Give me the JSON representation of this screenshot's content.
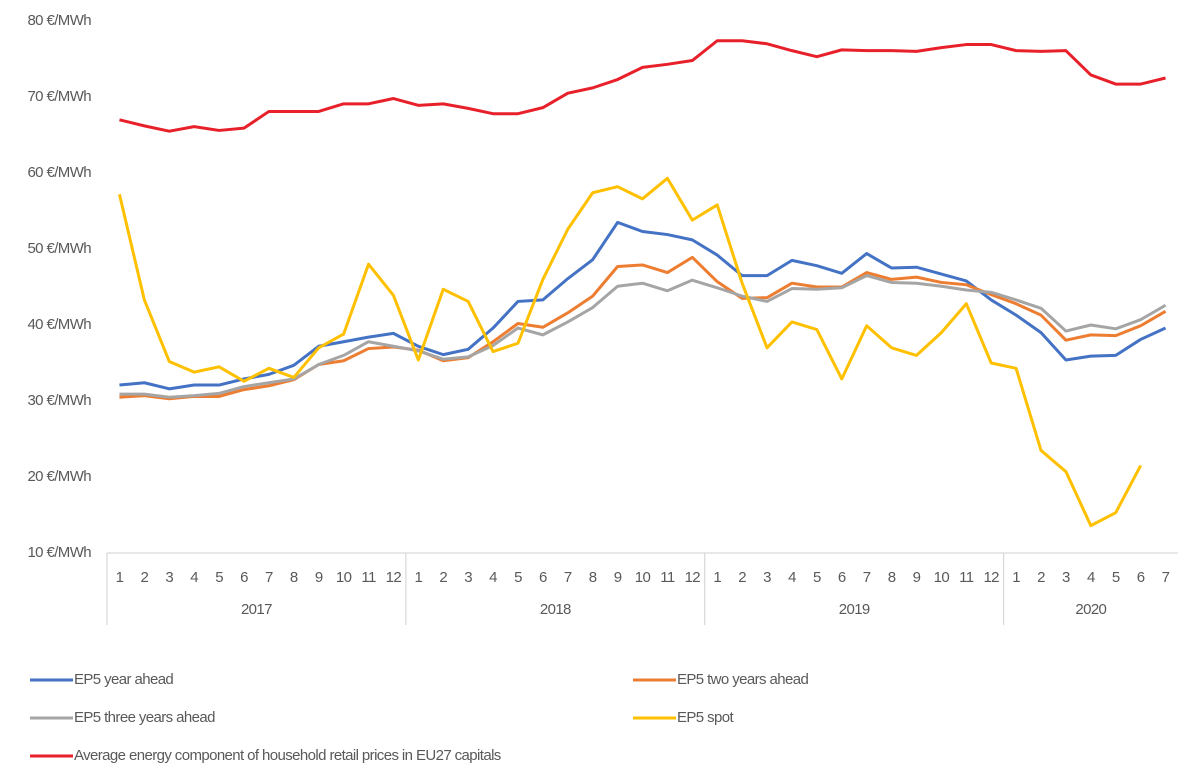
{
  "chart_data": {
    "type": "line",
    "categories": [
      "1",
      "2",
      "3",
      "4",
      "5",
      "6",
      "7",
      "8",
      "9",
      "10",
      "11",
      "12",
      "1",
      "2",
      "3",
      "4",
      "5",
      "6",
      "7",
      "8",
      "9",
      "10",
      "11",
      "12",
      "1",
      "2",
      "3",
      "4",
      "5",
      "6",
      "7",
      "8",
      "9",
      "10",
      "11",
      "12",
      "1",
      "2",
      "3",
      "4",
      "5",
      "6",
      "7"
    ],
    "years": [
      "2017",
      "2018",
      "2019",
      "2020"
    ],
    "ylim": [
      10,
      80
    ],
    "yticks": [
      {
        "value": 10,
        "label": "10 €/MWh"
      },
      {
        "value": 20,
        "label": "20 €/MWh"
      },
      {
        "value": 30,
        "label": "30 €/MWh"
      },
      {
        "value": 40,
        "label": "40 €/MWh"
      },
      {
        "value": 50,
        "label": "50 €/MWh"
      },
      {
        "value": 60,
        "label": "60 €/MWh"
      },
      {
        "value": 70,
        "label": "70 €/MWh"
      },
      {
        "value": 80,
        "label": "80 €/MWh"
      }
    ],
    "grid": false,
    "legend": "bottom",
    "series": [
      {
        "name": "EP5 year ahead",
        "color": "#4472c4",
        "values": [
          32.1,
          32.4,
          31.6,
          32.1,
          32.1,
          32.9,
          33.5,
          34.7,
          37.2,
          37.8,
          38.4,
          38.9,
          37.2,
          36.1,
          36.8,
          39.6,
          43.1,
          43.3,
          46.1,
          48.6,
          53.5,
          52.3,
          51.9,
          51.2,
          49.2,
          46.5,
          46.5,
          48.5,
          47.8,
          46.8,
          49.4,
          47.5,
          47.6,
          46.7,
          45.8,
          43.3,
          41.3,
          39,
          35.4,
          35.9,
          36,
          38.1,
          39.6
        ]
      },
      {
        "name": "EP5 two years ahead",
        "color": "#ed7d31",
        "values": [
          30.5,
          30.7,
          30.3,
          30.6,
          30.6,
          31.5,
          32,
          32.8,
          34.8,
          35.3,
          36.9,
          37.1,
          36.7,
          35.3,
          35.7,
          37.8,
          40.2,
          39.7,
          41.6,
          43.8,
          47.7,
          47.9,
          46.9,
          48.9,
          45.7,
          43.5,
          43.6,
          45.5,
          45,
          45,
          46.9,
          46,
          46.3,
          45.6,
          45.3,
          44,
          42.8,
          41.3,
          38,
          38.7,
          38.6,
          39.9,
          41.8
        ]
      },
      {
        "name": "EP5 three years ahead",
        "color": "#a5a5a5",
        "values": [
          30.9,
          30.9,
          30.5,
          30.7,
          31,
          31.9,
          32.4,
          32.9,
          34.8,
          36,
          37.8,
          37.2,
          36.6,
          35.5,
          35.8,
          37.3,
          39.6,
          38.7,
          40.4,
          42.3,
          45.1,
          45.5,
          44.5,
          45.9,
          44.9,
          43.8,
          43.1,
          44.8,
          44.7,
          44.9,
          46.5,
          45.6,
          45.5,
          45.1,
          44.6,
          44.3,
          43.3,
          42.2,
          39.2,
          40,
          39.5,
          40.7,
          42.6
        ]
      },
      {
        "name": "EP5 spot",
        "color": "#ffc000",
        "values": [
          57.2,
          43.3,
          35.2,
          33.8,
          34.5,
          32.6,
          34.3,
          33.1,
          37,
          38.8,
          48,
          43.9,
          35.4,
          44.7,
          43.1,
          36.5,
          37.6,
          46,
          52.6,
          57.4,
          58.2,
          56.6,
          59.3,
          53.8,
          55.8,
          45.5,
          37,
          40.4,
          39.4,
          32.9,
          39.9,
          37,
          36,
          39,
          42.8,
          35,
          34.3,
          23.5,
          20.7,
          13.6,
          15.3,
          21.5,
          null
        ]
      },
      {
        "name": "Average energy component of household retail prices in EU27 capitals",
        "color": "#e8202a",
        "values": [
          67,
          66.2,
          65.5,
          66.1,
          65.6,
          65.9,
          68.1,
          68.1,
          68.1,
          69.1,
          69.1,
          69.8,
          68.9,
          69.1,
          68.5,
          67.8,
          67.8,
          68.6,
          70.5,
          71.2,
          72.3,
          73.9,
          74.3,
          74.8,
          77.4,
          77.4,
          77,
          76.1,
          75.3,
          76.2,
          76.1,
          76.1,
          76,
          76.5,
          76.9,
          76.9,
          76.1,
          76,
          76.1,
          72.9,
          71.7,
          71.7,
          72.5
        ]
      }
    ]
  }
}
